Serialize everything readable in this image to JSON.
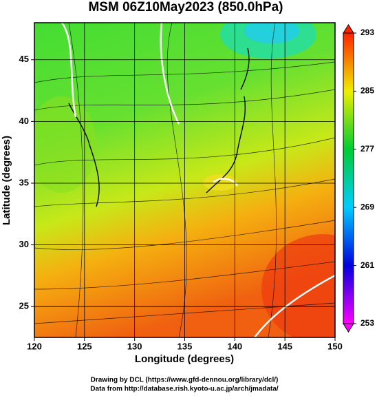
{
  "chart_data": {
    "type": "map",
    "title": "MSM 06Z10May2023 (850.0hPa)",
    "xlabel": "Longitude (degrees)",
    "ylabel": "Latitude  (degrees)",
    "xlim": [
      120,
      150
    ],
    "xticks": [
      120,
      125,
      130,
      135,
      140,
      145,
      150
    ],
    "ylim": [
      22.5,
      48
    ],
    "yticks": [
      25,
      30,
      35,
      40,
      45
    ],
    "grid": true,
    "colorbar": {
      "lim": [
        253,
        293
      ],
      "ticks": [
        253,
        261,
        269,
        277,
        285,
        293
      ],
      "colors": [
        "#ff00ff",
        "#0000dd",
        "#00ccff",
        "#00cc33",
        "#eeee00",
        "#ff2200"
      ]
    },
    "credits": [
      "Drawing by DCL (https://www.gfd-dennou.org/library/dcl/)",
      "Data from http://database.rish.kyoto-u.ac.jp/arch/jmadata/"
    ]
  }
}
